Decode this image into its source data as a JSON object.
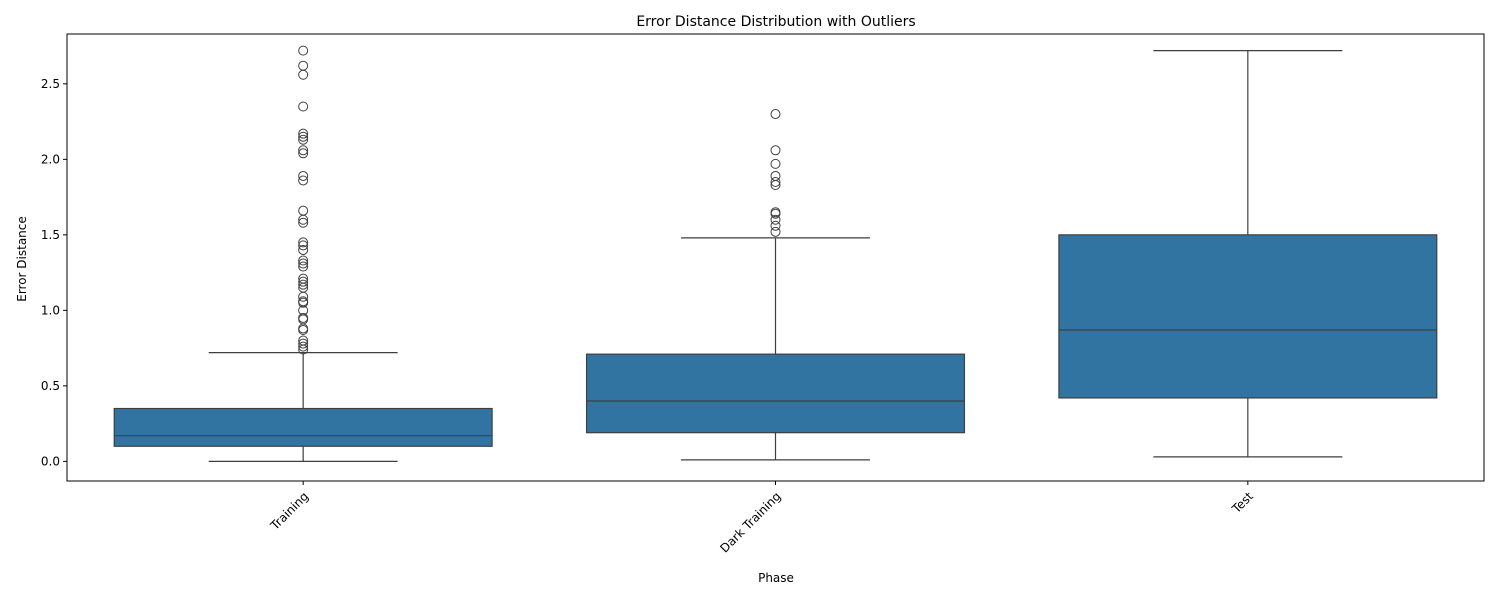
{
  "chart_data": {
    "type": "box",
    "title": "Error Distance Distribution with Outliers",
    "xlabel": "Phase",
    "ylabel": "Error Distance",
    "categories": [
      "Training",
      "Dark Training",
      "Test"
    ],
    "ylim": [
      -0.13,
      2.83
    ],
    "yticks": [
      0.0,
      0.5,
      1.0,
      1.5,
      2.0,
      2.5
    ],
    "ytick_labels": [
      "0.0",
      "0.5",
      "1.0",
      "1.5",
      "2.0",
      "2.5"
    ],
    "box_color": "#3274a1",
    "line_color": "#3f3f3f",
    "grid": false,
    "legend": "none",
    "boxes": [
      {
        "category": "Training",
        "whislo": 0.0,
        "q1": 0.1,
        "median": 0.17,
        "q3": 0.35,
        "whishi": 0.72,
        "fliers": [
          0.74,
          0.76,
          0.78,
          0.8,
          0.87,
          0.88,
          0.94,
          0.95,
          1.0,
          1.05,
          1.06,
          1.09,
          1.15,
          1.17,
          1.19,
          1.21,
          1.29,
          1.31,
          1.33,
          1.4,
          1.43,
          1.45,
          1.58,
          1.6,
          1.66,
          1.86,
          1.89,
          2.04,
          2.06,
          2.13,
          2.15,
          2.17,
          2.35,
          2.56,
          2.62,
          2.72
        ]
      },
      {
        "category": "Dark Training",
        "whislo": 0.01,
        "q1": 0.19,
        "median": 0.4,
        "q3": 0.71,
        "whishi": 1.48,
        "fliers": [
          1.52,
          1.56,
          1.6,
          1.64,
          1.65,
          1.83,
          1.85,
          1.89,
          1.97,
          2.06,
          2.3
        ]
      },
      {
        "category": "Test",
        "whislo": 0.03,
        "q1": 0.42,
        "median": 0.87,
        "q3": 1.5,
        "whishi": 2.72,
        "fliers": []
      }
    ]
  }
}
